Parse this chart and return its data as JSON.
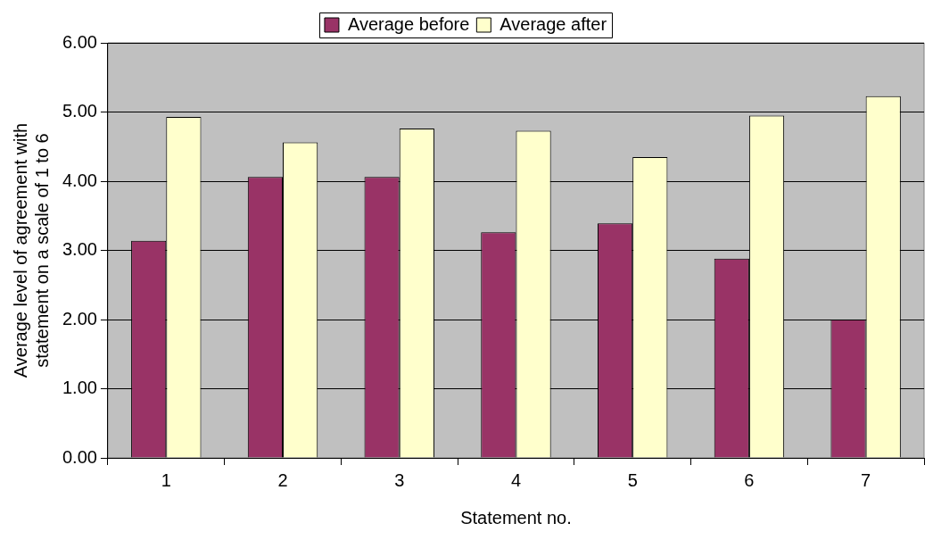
{
  "chart_data": {
    "type": "bar",
    "xlabel": "Statement no.",
    "ylabel": "Average level of agreement with statement on a scale of 1 to 6",
    "categories": [
      "1",
      "2",
      "3",
      "4",
      "5",
      "6",
      "7"
    ],
    "series": [
      {
        "name": "Average before",
        "color": "#993366",
        "values": [
          3.14,
          4.06,
          4.06,
          3.26,
          3.39,
          2.88,
          2.0
        ]
      },
      {
        "name": "Average after",
        "color": "#ffffcc",
        "values": [
          4.93,
          4.56,
          4.76,
          4.73,
          4.35,
          4.95,
          5.23
        ]
      }
    ],
    "ylim": [
      0,
      6
    ],
    "yticks": [
      {
        "value": 0,
        "label": "0.00"
      },
      {
        "value": 1,
        "label": "1.00"
      },
      {
        "value": 2,
        "label": "2.00"
      },
      {
        "value": 3,
        "label": "3.00"
      },
      {
        "value": 4,
        "label": "4.00"
      },
      {
        "value": 5,
        "label": "5.00"
      },
      {
        "value": 6,
        "label": "6.00"
      }
    ],
    "grid": "y",
    "legend": "top"
  }
}
